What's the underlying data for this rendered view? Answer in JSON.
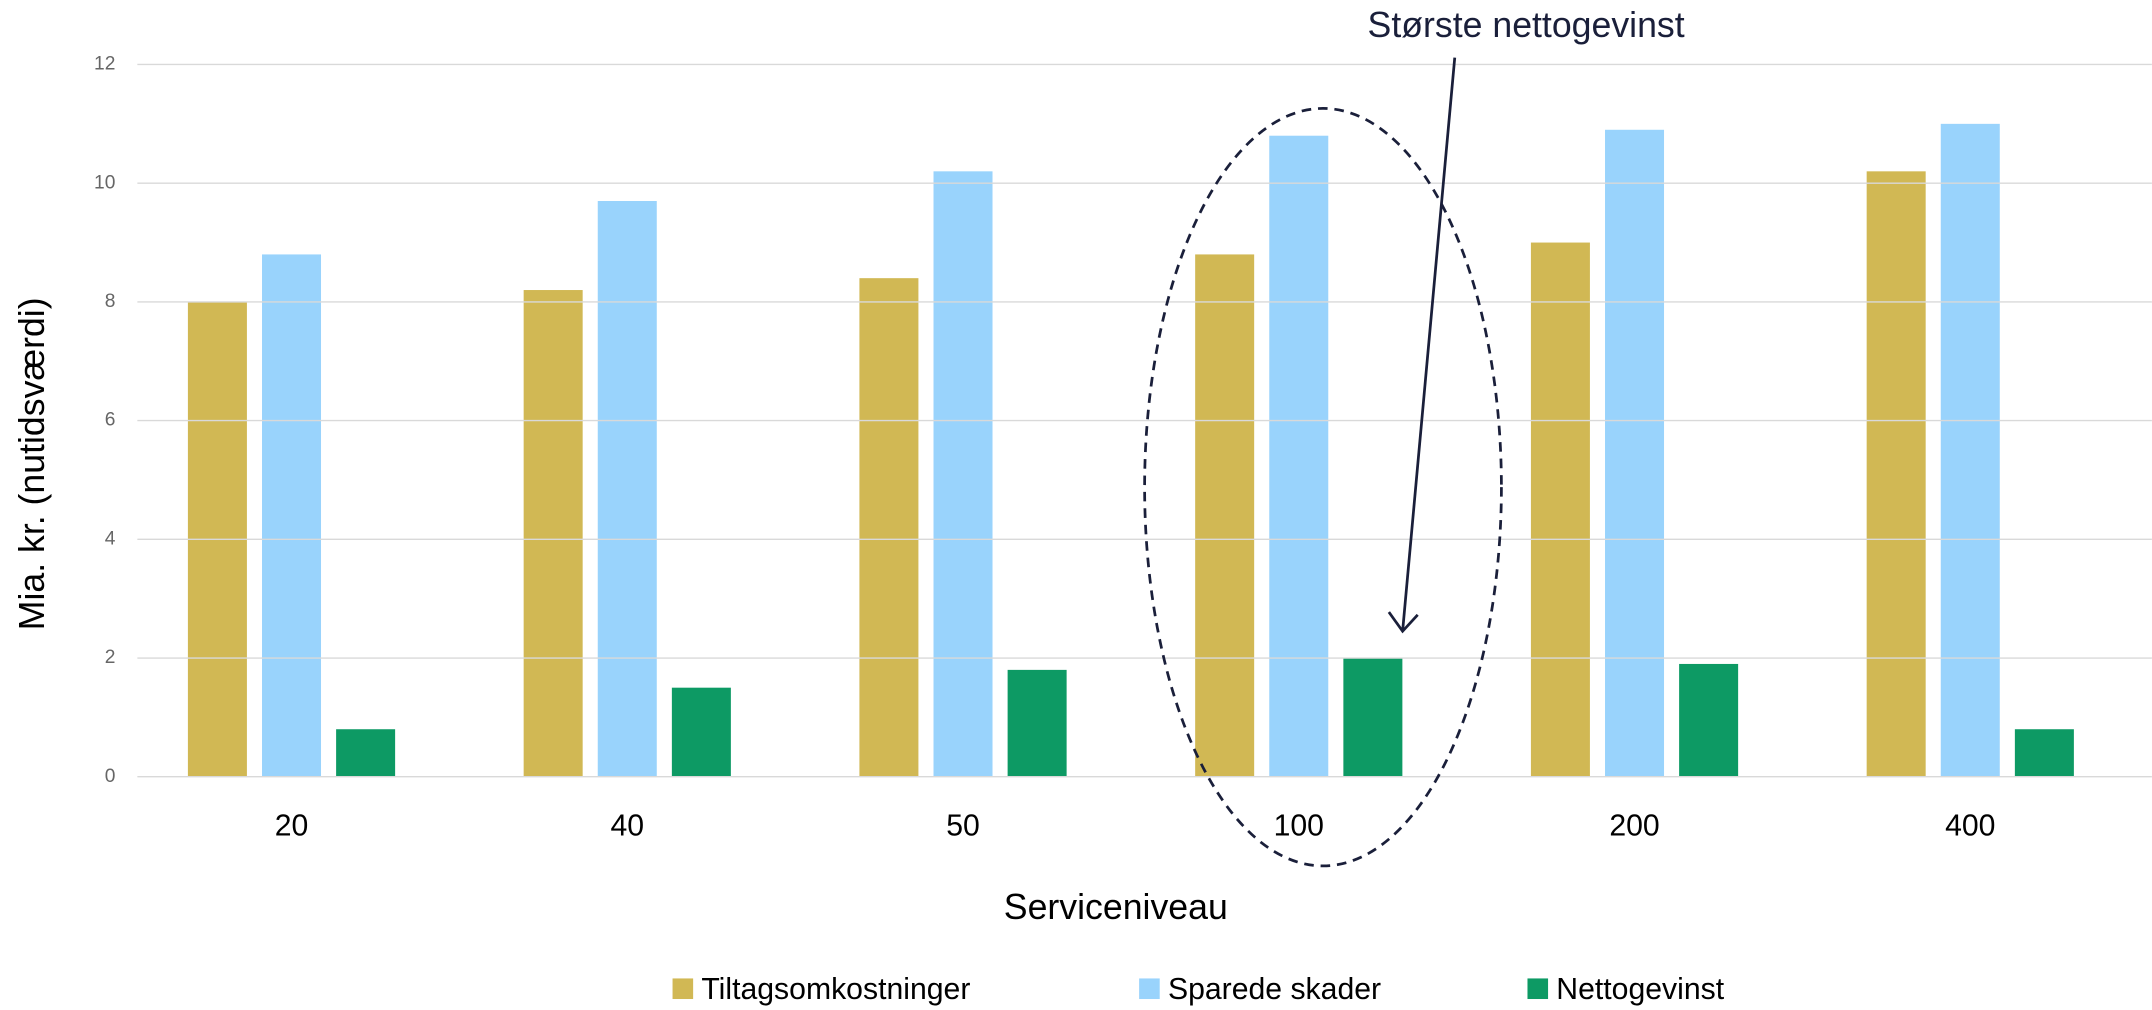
{
  "chart_data": {
    "type": "bar",
    "categories": [
      "20",
      "40",
      "50",
      "100",
      "200",
      "400"
    ],
    "series": [
      {
        "name": "Tiltagsomkostninger",
        "color": "#d1b854",
        "values": [
          8.0,
          8.2,
          8.4,
          8.8,
          9.0,
          10.2
        ]
      },
      {
        "name": "Sparede skader",
        "color": "#99d3fc",
        "values": [
          8.8,
          9.7,
          10.2,
          10.8,
          10.9,
          11.0
        ]
      },
      {
        "name": "Nettogevinst",
        "color": "#0d9a64",
        "values": [
          0.8,
          1.5,
          1.8,
          2.0,
          1.9,
          0.8
        ]
      }
    ],
    "xlabel": "Serviceniveau",
    "ylabel": "Mia. kr. (nutidsværdi)",
    "annotation": "Største nettogevinst",
    "ylim": [
      0,
      12
    ],
    "yticks": [
      0,
      2,
      4,
      6,
      8,
      10,
      12
    ],
    "grid": true,
    "legend": "bottom"
  }
}
